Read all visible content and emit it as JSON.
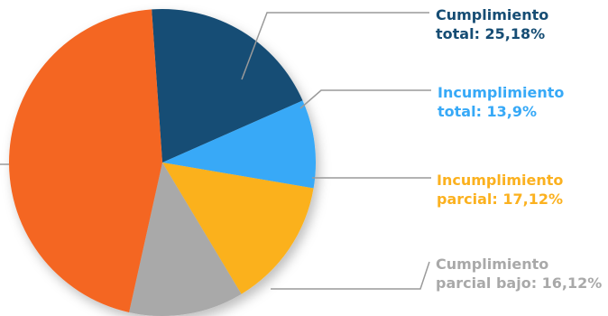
{
  "chart_data": {
    "type": "pie",
    "title": "",
    "slices": [
      {
        "label_line1": "Cumplimiento",
        "label_line2": "total: 25,18%",
        "value": 25.18,
        "color": "#164d74",
        "display_share": 0.195
      },
      {
        "label_line1": "Incumplimiento",
        "label_line2": "total: 13,9%",
        "value": 13.9,
        "color": "#37a9f7",
        "display_share": 0.093
      },
      {
        "label_line1": "Incumplimiento",
        "label_line2": "parcial: 17,12%",
        "value": 17.12,
        "color": "#fbb11f",
        "display_share": 0.137
      },
      {
        "label_line1": "Cumplimiento",
        "label_line2": "parcial bajo: 16,12%",
        "value": 16.12,
        "color": "#a9a9a9",
        "display_share": 0.121
      },
      {
        "label_line1": "",
        "label_line2": "",
        "value": null,
        "color": "#f46623",
        "display_share": 0.454
      }
    ],
    "legend": "right",
    "label_colors": [
      "#164d74",
      "#37a9f7",
      "#fbb11f",
      "#a9a9a9"
    ]
  }
}
